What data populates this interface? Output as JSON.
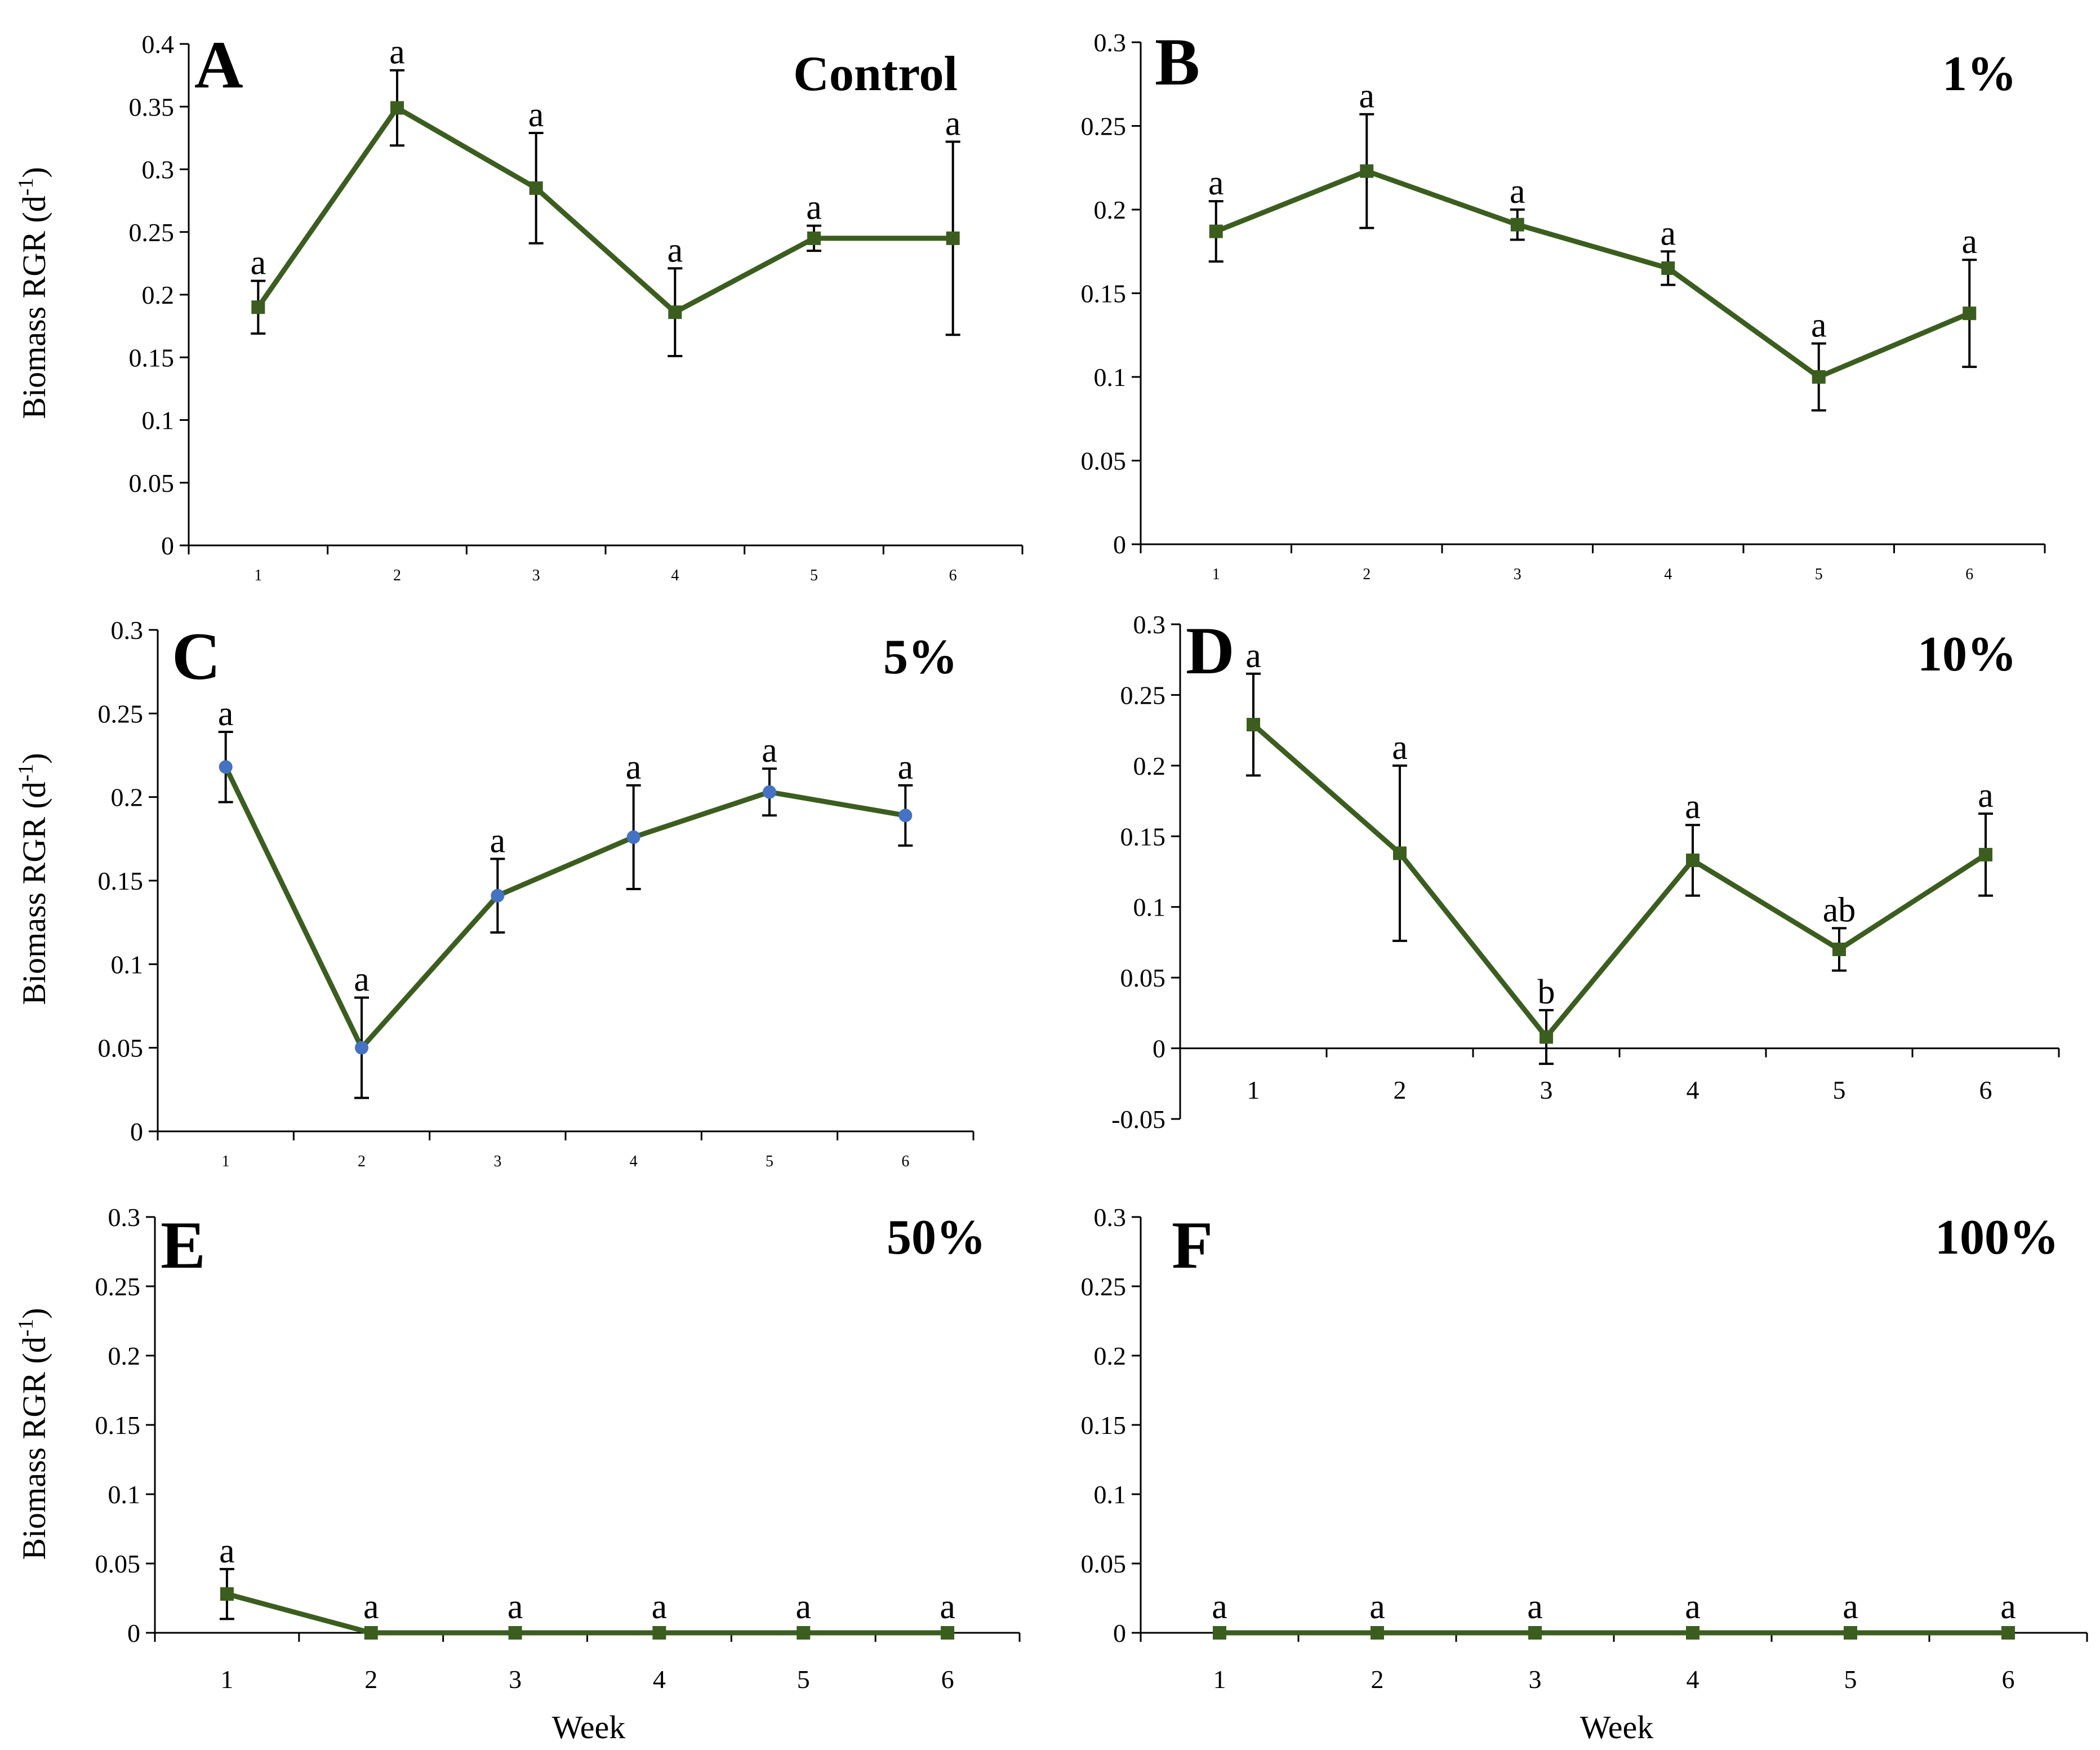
{
  "chart_data": [
    {
      "type": "line",
      "panel_letter": "A",
      "title": "Control",
      "ylabel": "Biomass RGR (d",
      "ylabel_sup": "-1",
      "ylabel_close": ")",
      "xlabel": "",
      "categories": [
        "1",
        "2",
        "3",
        "4",
        "5",
        "6"
      ],
      "ylim": [
        0,
        0.4
      ],
      "yticks": [
        "0",
        "0.05",
        "0.1",
        "0.15",
        "0.2",
        "0.25",
        "0.3",
        "0.35",
        "0.4"
      ],
      "series": [
        {
          "name": "Control",
          "values": [
            0.19,
            0.349,
            0.285,
            0.186,
            0.245,
            0.245
          ],
          "errors": [
            0.021,
            0.03,
            0.044,
            0.035,
            0.01,
            0.077
          ],
          "labels": [
            "a",
            "a",
            "a",
            "a",
            "a",
            "a"
          ],
          "marker": "square",
          "marker_color": "#3b5e1e",
          "line_color": "#3b5e1e"
        }
      ]
    },
    {
      "type": "line",
      "panel_letter": "B",
      "title": "1%",
      "ylabel": "",
      "xlabel": "",
      "categories": [
        "1",
        "2",
        "3",
        "4",
        "5",
        "6"
      ],
      "ylim": [
        0,
        0.3
      ],
      "yticks": [
        "0",
        "0.05",
        "0.1",
        "0.15",
        "0.2",
        "0.25",
        "0.3"
      ],
      "series": [
        {
          "name": "1%",
          "values": [
            0.187,
            0.223,
            0.191,
            0.165,
            0.1,
            0.138
          ],
          "errors": [
            0.018,
            0.034,
            0.009,
            0.01,
            0.02,
            0.032
          ],
          "labels": [
            "a",
            "a",
            "a",
            "a",
            "a",
            "a"
          ],
          "marker": "square",
          "marker_color": "#3b5e1e",
          "line_color": "#3b5e1e"
        }
      ]
    },
    {
      "type": "line",
      "panel_letter": "C",
      "title": "5%",
      "ylabel": "Biomass RGR (d",
      "ylabel_sup": "-1",
      "ylabel_close": ")",
      "xlabel": "",
      "categories": [
        "1",
        "2",
        "3",
        "4",
        "5",
        "6"
      ],
      "ylim": [
        0,
        0.3
      ],
      "yticks": [
        "0",
        "0.05",
        "0.1",
        "0.15",
        "0.2",
        "0.25",
        "0.3"
      ],
      "series": [
        {
          "name": "5%",
          "values": [
            0.218,
            0.05,
            0.141,
            0.176,
            0.203,
            0.189
          ],
          "errors": [
            0.021,
            0.03,
            0.022,
            0.031,
            0.014,
            0.018
          ],
          "labels": [
            "a",
            "a",
            "a",
            "a",
            "a",
            "a"
          ],
          "marker": "circle",
          "marker_color": "#4472c4",
          "line_color": "#3b5e1e"
        }
      ]
    },
    {
      "type": "line",
      "panel_letter": "D",
      "title": "10%",
      "ylabel": "",
      "xlabel": "",
      "categories": [
        "1",
        "2",
        "3",
        "4",
        "5",
        "6"
      ],
      "ylim": [
        -0.05,
        0.3
      ],
      "yticks": [
        "-0.05",
        "0",
        "0.05",
        "0.1",
        "0.15",
        "0.2",
        "0.25",
        "0.3"
      ],
      "series": [
        {
          "name": "10%",
          "values": [
            0.229,
            0.138,
            0.008,
            0.133,
            0.07,
            0.137
          ],
          "errors": [
            0.036,
            0.062,
            0.019,
            0.025,
            0.015,
            0.029
          ],
          "labels": [
            "a",
            "a",
            "b",
            "a",
            "ab",
            "a"
          ],
          "marker": "square",
          "marker_color": "#3b5e1e",
          "line_color": "#3b5e1e"
        }
      ]
    },
    {
      "type": "line",
      "panel_letter": "E",
      "title": "50%",
      "ylabel": "Biomass RGR (d",
      "ylabel_sup": "-1",
      "ylabel_close": ")",
      "xlabel": "Week",
      "categories": [
        "1",
        "2",
        "3",
        "4",
        "5",
        "6"
      ],
      "ylim": [
        0,
        0.3
      ],
      "yticks": [
        "0",
        "0.05",
        "0.1",
        "0.15",
        "0.2",
        "0.25",
        "0.3"
      ],
      "series": [
        {
          "name": "50%",
          "values": [
            0.028,
            0,
            0,
            0,
            0,
            0
          ],
          "errors": [
            0.018,
            0,
            0,
            0,
            0,
            0
          ],
          "labels": [
            "a",
            "a",
            "a",
            "a",
            "a",
            "a"
          ],
          "marker": "square",
          "marker_color": "#3b5e1e",
          "line_color": "#3b5e1e"
        }
      ]
    },
    {
      "type": "line",
      "panel_letter": "F",
      "title": "100%",
      "ylabel": "",
      "xlabel": "Week",
      "categories": [
        "1",
        "2",
        "3",
        "4",
        "5",
        "6"
      ],
      "ylim": [
        0,
        0.3
      ],
      "yticks": [
        "0",
        "0.05",
        "0.1",
        "0.15",
        "0.2",
        "0.25",
        "0.3"
      ],
      "series": [
        {
          "name": "100%",
          "values": [
            0,
            0,
            0,
            0,
            0,
            0
          ],
          "errors": [
            0,
            0,
            0,
            0,
            0,
            0
          ],
          "labels": [
            "a",
            "a",
            "a",
            "a",
            "a",
            "a"
          ],
          "marker": "square",
          "marker_color": "#3b5e1e",
          "line_color": "#3b5e1e"
        }
      ]
    }
  ]
}
